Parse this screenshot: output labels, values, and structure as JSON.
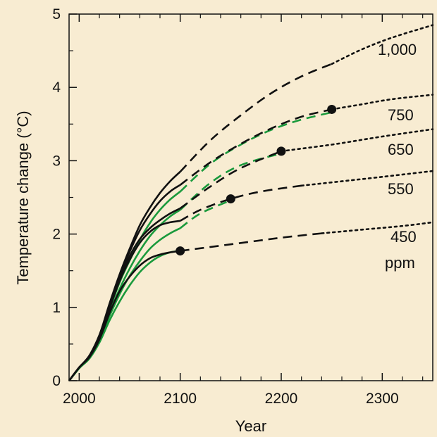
{
  "chart_data": {
    "type": "line",
    "xlabel": "Year",
    "ylabel": "Temperature change (°C)",
    "xlim": [
      1990,
      2350
    ],
    "ylim": [
      0,
      5
    ],
    "x_ticks": [
      "2000",
      "2100",
      "2200",
      "2300"
    ],
    "y_ticks": [
      "0",
      "1",
      "2",
      "3",
      "4",
      "5"
    ],
    "grid": false,
    "colors": {
      "black": "#111111",
      "green": "#1a9a3c",
      "background": "#f8ecd2",
      "plot_background": "#f8ecd2"
    },
    "curve_labels": [
      "1,000",
      "750",
      "650",
      "550",
      "450",
      "ppm"
    ],
    "series": [
      {
        "name": "1,000",
        "color": "#111111",
        "solid": [
          [
            1990,
            0
          ],
          [
            2000,
            0.18
          ],
          [
            2010,
            0.34
          ],
          [
            2020,
            0.62
          ],
          [
            2030,
            1.05
          ],
          [
            2040,
            1.45
          ],
          [
            2050,
            1.8
          ],
          [
            2060,
            2.12
          ],
          [
            2070,
            2.36
          ],
          [
            2080,
            2.56
          ],
          [
            2090,
            2.72
          ],
          [
            2100,
            2.85
          ]
        ],
        "dashed": [
          [
            2100,
            2.85
          ],
          [
            2130,
            3.28
          ],
          [
            2160,
            3.62
          ],
          [
            2190,
            3.92
          ],
          [
            2220,
            4.15
          ],
          [
            2250,
            4.32
          ]
        ],
        "dotted": [
          [
            2250,
            4.32
          ],
          [
            2280,
            4.52
          ],
          [
            2310,
            4.68
          ],
          [
            2350,
            4.85
          ]
        ]
      },
      {
        "name": "750",
        "color": "#111111",
        "solid": [
          [
            1990,
            0
          ],
          [
            2000,
            0.18
          ],
          [
            2010,
            0.34
          ],
          [
            2020,
            0.62
          ],
          [
            2030,
            1.03
          ],
          [
            2040,
            1.42
          ],
          [
            2050,
            1.76
          ],
          [
            2060,
            2.05
          ],
          [
            2070,
            2.27
          ],
          [
            2080,
            2.45
          ],
          [
            2090,
            2.58
          ],
          [
            2100,
            2.67
          ]
        ],
        "dashed": [
          [
            2100,
            2.67
          ],
          [
            2130,
            2.98
          ],
          [
            2160,
            3.23
          ],
          [
            2190,
            3.44
          ],
          [
            2220,
            3.6
          ],
          [
            2250,
            3.7
          ]
        ],
        "dotted": [
          [
            2250,
            3.7
          ],
          [
            2280,
            3.77
          ],
          [
            2310,
            3.84
          ],
          [
            2350,
            3.9
          ]
        ]
      },
      {
        "name": "650",
        "color": "#111111",
        "solid": [
          [
            1990,
            0
          ],
          [
            2000,
            0.18
          ],
          [
            2010,
            0.33
          ],
          [
            2020,
            0.6
          ],
          [
            2030,
            1.0
          ],
          [
            2040,
            1.38
          ],
          [
            2050,
            1.7
          ],
          [
            2060,
            1.93
          ],
          [
            2070,
            2.08
          ],
          [
            2080,
            2.19
          ],
          [
            2090,
            2.28
          ],
          [
            2100,
            2.35
          ]
        ],
        "dashed": [
          [
            2100,
            2.35
          ],
          [
            2130,
            2.65
          ],
          [
            2160,
            2.9
          ],
          [
            2200,
            3.13
          ]
        ],
        "dotted": [
          [
            2200,
            3.13
          ],
          [
            2250,
            3.22
          ],
          [
            2300,
            3.33
          ],
          [
            2350,
            3.43
          ]
        ]
      },
      {
        "name": "550",
        "color": "#111111",
        "solid": [
          [
            1990,
            0
          ],
          [
            2000,
            0.18
          ],
          [
            2010,
            0.33
          ],
          [
            2020,
            0.58
          ],
          [
            2030,
            0.98
          ],
          [
            2040,
            1.36
          ],
          [
            2050,
            1.65
          ],
          [
            2060,
            1.88
          ],
          [
            2070,
            2.03
          ],
          [
            2080,
            2.12
          ],
          [
            2090,
            2.16
          ],
          [
            2100,
            2.18
          ]
        ],
        "dashed": [
          [
            2100,
            2.18
          ],
          [
            2120,
            2.33
          ],
          [
            2150,
            2.48
          ],
          [
            2180,
            2.58
          ],
          [
            2220,
            2.66
          ]
        ],
        "dotted": [
          [
            2220,
            2.66
          ],
          [
            2260,
            2.72
          ],
          [
            2300,
            2.78
          ],
          [
            2350,
            2.86
          ]
        ]
      },
      {
        "name": "450",
        "color": "#111111",
        "solid": [
          [
            1990,
            0
          ],
          [
            2000,
            0.18
          ],
          [
            2010,
            0.32
          ],
          [
            2020,
            0.56
          ],
          [
            2030,
            0.92
          ],
          [
            2040,
            1.22
          ],
          [
            2050,
            1.42
          ],
          [
            2060,
            1.57
          ],
          [
            2070,
            1.67
          ],
          [
            2080,
            1.72
          ],
          [
            2090,
            1.75
          ],
          [
            2100,
            1.77
          ]
        ],
        "dashed": [
          [
            2100,
            1.77
          ],
          [
            2150,
            1.86
          ],
          [
            2200,
            1.95
          ],
          [
            2240,
            2.01
          ]
        ],
        "dotted": [
          [
            2240,
            2.01
          ],
          [
            2280,
            2.06
          ],
          [
            2320,
            2.11
          ],
          [
            2350,
            2.16
          ]
        ]
      },
      {
        "name": "",
        "color": "#1a9a3c",
        "solid": [
          [
            1990,
            0
          ],
          [
            2000,
            0.17
          ],
          [
            2010,
            0.32
          ],
          [
            2020,
            0.58
          ],
          [
            2030,
            0.97
          ],
          [
            2040,
            1.34
          ],
          [
            2050,
            1.64
          ],
          [
            2060,
            1.92
          ],
          [
            2070,
            2.15
          ],
          [
            2080,
            2.33
          ],
          [
            2090,
            2.47
          ],
          [
            2100,
            2.58
          ]
        ],
        "dashed": [
          [
            2100,
            2.58
          ],
          [
            2130,
            2.96
          ],
          [
            2160,
            3.22
          ],
          [
            2190,
            3.42
          ],
          [
            2220,
            3.56
          ],
          [
            2250,
            3.66
          ]
        ]
      },
      {
        "name": "",
        "color": "#1a9a3c",
        "solid": [
          [
            1990,
            0
          ],
          [
            2000,
            0.17
          ],
          [
            2010,
            0.32
          ],
          [
            2020,
            0.56
          ],
          [
            2030,
            0.92
          ],
          [
            2040,
            1.25
          ],
          [
            2050,
            1.53
          ],
          [
            2060,
            1.77
          ],
          [
            2070,
            1.97
          ],
          [
            2080,
            2.12
          ],
          [
            2090,
            2.24
          ],
          [
            2100,
            2.33
          ]
        ],
        "dashed": [
          [
            2100,
            2.33
          ],
          [
            2130,
            2.7
          ],
          [
            2160,
            2.94
          ],
          [
            2200,
            3.1
          ]
        ]
      },
      {
        "name": "",
        "color": "#1a9a3c",
        "solid": [
          [
            1990,
            0
          ],
          [
            2000,
            0.17
          ],
          [
            2010,
            0.31
          ],
          [
            2020,
            0.54
          ],
          [
            2030,
            0.88
          ],
          [
            2040,
            1.18
          ],
          [
            2050,
            1.43
          ],
          [
            2060,
            1.63
          ],
          [
            2070,
            1.8
          ],
          [
            2080,
            1.92
          ],
          [
            2090,
            2.01
          ],
          [
            2100,
            2.08
          ]
        ],
        "dashed": [
          [
            2100,
            2.08
          ],
          [
            2120,
            2.28
          ],
          [
            2150,
            2.46
          ]
        ]
      },
      {
        "name": "",
        "color": "#1a9a3c",
        "solid": [
          [
            1990,
            0
          ],
          [
            2000,
            0.17
          ],
          [
            2010,
            0.3
          ],
          [
            2020,
            0.52
          ],
          [
            2030,
            0.82
          ],
          [
            2040,
            1.08
          ],
          [
            2050,
            1.3
          ],
          [
            2060,
            1.48
          ],
          [
            2070,
            1.61
          ],
          [
            2080,
            1.7
          ],
          [
            2090,
            1.75
          ],
          [
            2100,
            1.77
          ]
        ]
      }
    ],
    "stabilization_points": [
      {
        "x": 2100,
        "y": 1.77
      },
      {
        "x": 2150,
        "y": 2.48
      },
      {
        "x": 2200,
        "y": 3.13
      },
      {
        "x": 2250,
        "y": 3.7
      }
    ]
  }
}
